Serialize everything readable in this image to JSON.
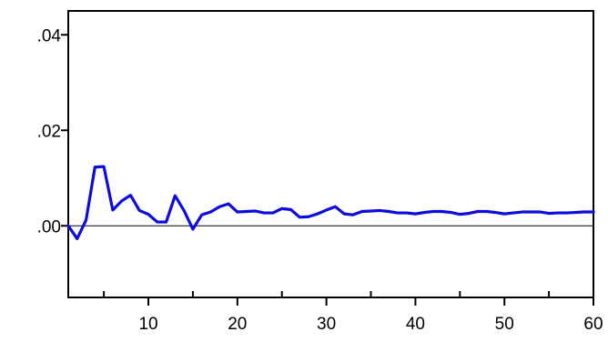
{
  "chart_data": {
    "type": "line",
    "title": "",
    "xlabel": "",
    "ylabel": "",
    "xlim": [
      1,
      60
    ],
    "ylim": [
      -0.015,
      0.045
    ],
    "grid": false,
    "legend": "none",
    "x_ticks": [
      {
        "value": 10,
        "label": "10"
      },
      {
        "value": 20,
        "label": "20"
      },
      {
        "value": 30,
        "label": "30"
      },
      {
        "value": 40,
        "label": "40"
      },
      {
        "value": 50,
        "label": "50"
      },
      {
        "value": 60,
        "label": "60"
      }
    ],
    "x_minor_ticks": [
      5,
      15,
      25,
      35,
      45,
      55
    ],
    "y_ticks": [
      {
        "value": 0.0,
        "label": ".00"
      },
      {
        "value": 0.02,
        "label": ".02"
      },
      {
        "value": 0.04,
        "label": ".04"
      }
    ],
    "reference_line": {
      "y": 0,
      "color": "#000000"
    },
    "series": [
      {
        "color": "#0b0bdf",
        "x": [
          1,
          2,
          3,
          4,
          5,
          6,
          7,
          8,
          9,
          10,
          11,
          12,
          13,
          14,
          15,
          16,
          17,
          18,
          19,
          20,
          21,
          22,
          23,
          24,
          25,
          26,
          27,
          28,
          29,
          30,
          31,
          32,
          33,
          34,
          35,
          36,
          37,
          38,
          39,
          40,
          41,
          42,
          43,
          44,
          45,
          46,
          47,
          48,
          49,
          50,
          51,
          52,
          53,
          54,
          55,
          56,
          57,
          58,
          59,
          60
        ],
        "values": [
          0.0,
          -0.0027,
          0.0012,
          0.0123,
          0.0124,
          0.0033,
          0.0052,
          0.0064,
          0.0032,
          0.0024,
          0.0008,
          0.0008,
          0.0063,
          0.0032,
          -0.0007,
          0.0023,
          0.0029,
          0.004,
          0.0046,
          0.0029,
          0.003,
          0.0031,
          0.0027,
          0.0027,
          0.0036,
          0.0034,
          0.0018,
          0.0019,
          0.0025,
          0.0033,
          0.004,
          0.0025,
          0.0023,
          0.003,
          0.0031,
          0.0032,
          0.003,
          0.0027,
          0.0027,
          0.0025,
          0.0028,
          0.003,
          0.003,
          0.0028,
          0.0024,
          0.0026,
          0.003,
          0.003,
          0.0028,
          0.0025,
          0.0027,
          0.0029,
          0.0029,
          0.0029,
          0.0026,
          0.0027,
          0.0027,
          0.0028,
          0.0029,
          0.0029
        ]
      }
    ]
  }
}
